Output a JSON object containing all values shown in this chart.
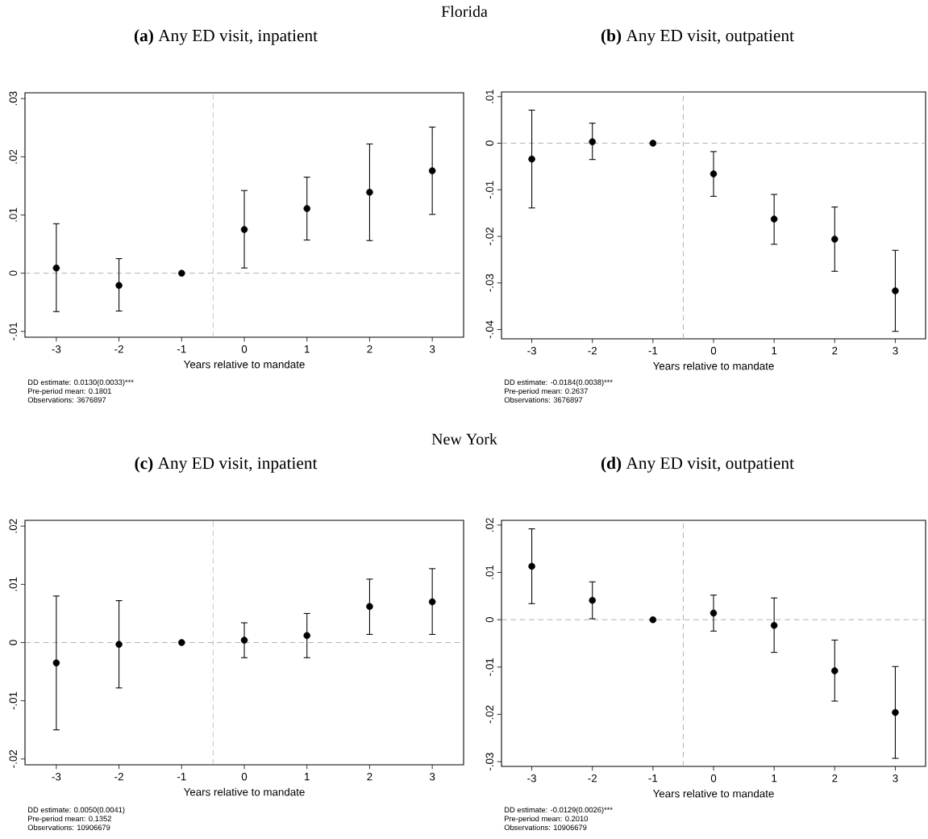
{
  "chart_data": [
    {
      "type": "scatter",
      "title": "**(a)** Any ED visit, inpatient",
      "xlabel": "Years relative to mandate",
      "color": "#000000",
      "marker": "circle",
      "x": [
        -3,
        -2,
        -1,
        0,
        1,
        2,
        3
      ],
      "values": [
        0.0009,
        -0.0021,
        0,
        0.0075,
        0.0111,
        0.0139,
        0.0176
      ],
      "errors": [
        [
          -0.0066,
          0.0085
        ],
        [
          -0.0065,
          0.0025
        ],
        null,
        [
          0.0009,
          0.0142
        ],
        [
          0.0057,
          0.0165
        ],
        [
          0.0056,
          0.0222
        ],
        [
          0.0101,
          0.0251
        ]
      ],
      "xlim": [
        -3.5,
        3.5
      ],
      "xticks": [
        -3,
        -2,
        -1,
        0,
        1,
        2,
        3
      ],
      "ylim": [
        -0.011,
        0.031
      ],
      "yticks": [
        {
          "value": -0.01,
          "label": "-.01"
        },
        0,
        {
          "value": 0.01,
          "label": ".01"
        },
        {
          "value": 0.02,
          "label": ".02"
        },
        {
          "value": 0.03,
          "label": ".03"
        }
      ],
      "ref_lines": [
        {
          "axis": "x",
          "value": -0.5,
          "color": "#a0a0a0",
          "line_style": "dashed"
        },
        {
          "axis": "y",
          "value": 0,
          "color": "#a0a0a0",
          "line_style": "dashed"
        }
      ],
      "annotations": [
        "Florida",
        "DD estimate: 0.0130(0.0033)***",
        "Pre-period mean: 0.1801",
        "Observations: 3676897"
      ]
    },
    {
      "type": "scatter",
      "title": "**(b)** Any ED visit, outpatient",
      "xlabel": "Years relative to mandate",
      "color": "#000000",
      "marker": "circle",
      "x": [
        -3,
        -2,
        -1,
        0,
        1,
        2,
        3
      ],
      "values": [
        -0.0034,
        0.0003,
        0,
        -0.0066,
        -0.0163,
        -0.0206,
        -0.0317
      ],
      "errors": [
        [
          -0.0139,
          0.0071
        ],
        [
          -0.0035,
          0.0043
        ],
        null,
        [
          -0.0114,
          -0.0018
        ],
        [
          -0.0217,
          -0.011
        ],
        [
          -0.0275,
          -0.0137
        ],
        [
          -0.0404,
          -0.023
        ]
      ],
      "xlim": [
        -3.5,
        3.5
      ],
      "xticks": [
        -3,
        -2,
        -1,
        0,
        1,
        2,
        3
      ],
      "ylim": [
        -0.042,
        0.011
      ],
      "yticks": [
        {
          "value": -0.04,
          "label": "-.04"
        },
        {
          "value": -0.03,
          "label": "-.03"
        },
        {
          "value": -0.02,
          "label": "-.02"
        },
        {
          "value": -0.01,
          "label": "-.01"
        },
        0,
        {
          "value": 0.01,
          "label": ".01"
        }
      ],
      "ref_lines": [
        {
          "axis": "x",
          "value": -0.5,
          "color": "#a0a0a0",
          "line_style": "dashed"
        },
        {
          "axis": "y",
          "value": 0,
          "color": "#a0a0a0",
          "line_style": "dashed"
        }
      ],
      "annotations": [
        "DD estimate: -0.0184(0.0038)***",
        "Pre-period mean: 0.2637",
        "Observations: 3676897"
      ]
    },
    {
      "type": "scatter",
      "title": "**(c)** Any ED visit, inpatient",
      "xlabel": "Years relative to mandate",
      "color": "#000000",
      "marker": "circle",
      "x": [
        -3,
        -2,
        -1,
        0,
        1,
        2,
        3
      ],
      "values": [
        -0.0035,
        -0.0003,
        0,
        0.0004,
        0.0012,
        0.0062,
        0.007
      ],
      "errors": [
        [
          -0.015,
          0.008
        ],
        [
          -0.0078,
          0.0072
        ],
        null,
        [
          -0.0026,
          0.0034
        ],
        [
          -0.0026,
          0.005
        ],
        [
          0.0014,
          0.0109
        ],
        [
          0.0014,
          0.0127
        ]
      ],
      "xlim": [
        -3.5,
        3.5
      ],
      "xticks": [
        -3,
        -2,
        -1,
        0,
        1,
        2,
        3
      ],
      "ylim": [
        -0.021,
        0.021
      ],
      "yticks": [
        {
          "value": -0.02,
          "label": "-.02"
        },
        {
          "value": -0.01,
          "label": "-.01"
        },
        0,
        {
          "value": 0.01,
          "label": ".01"
        },
        {
          "value": 0.02,
          "label": ".02"
        }
      ],
      "ref_lines": [
        {
          "axis": "x",
          "value": -0.5,
          "color": "#a0a0a0",
          "line_style": "dashed"
        },
        {
          "axis": "y",
          "value": 0,
          "color": "#a0a0a0",
          "line_style": "dashed"
        }
      ],
      "annotations": [
        "New York",
        "DD estimate: 0.0050(0.0041)",
        "Pre-period mean: 0.1352",
        "Observations: 10906679"
      ]
    },
    {
      "type": "scatter",
      "title": "**(d)** Any ED visit, outpatient",
      "xlabel": "Years relative to mandate",
      "color": "#000000",
      "marker": "circle",
      "x": [
        -3,
        -2,
        -1,
        0,
        1,
        2,
        3
      ],
      "values": [
        0.0113,
        0.0041,
        0,
        0.0014,
        -0.0012,
        -0.0108,
        -0.0196
      ],
      "errors": [
        [
          0.0034,
          0.0192
        ],
        [
          0.0002,
          0.008
        ],
        null,
        [
          -0.0024,
          0.0052
        ],
        [
          -0.0069,
          0.0046
        ],
        [
          -0.0172,
          -0.0043
        ],
        [
          -0.0293,
          -0.0099
        ]
      ],
      "xlim": [
        -3.5,
        3.5
      ],
      "xticks": [
        -3,
        -2,
        -1,
        0,
        1,
        2,
        3
      ],
      "ylim": [
        -0.031,
        0.021
      ],
      "yticks": [
        {
          "value": -0.03,
          "label": "-.03"
        },
        {
          "value": -0.02,
          "label": "-.02"
        },
        {
          "value": -0.01,
          "label": "-.01"
        },
        0,
        {
          "value": 0.01,
          "label": ".01"
        },
        {
          "value": 0.02,
          "label": ".02"
        }
      ],
      "ref_lines": [
        {
          "axis": "x",
          "value": -0.5,
          "color": "#a0a0a0",
          "line_style": "dashed"
        },
        {
          "axis": "y",
          "value": 0,
          "color": "#a0a0a0",
          "line_style": "dashed"
        }
      ],
      "annotations": [
        "DD estimate: -0.0129(0.0026)***",
        "Pre-period mean: 0.2010",
        "Observations: 10906679"
      ]
    }
  ]
}
